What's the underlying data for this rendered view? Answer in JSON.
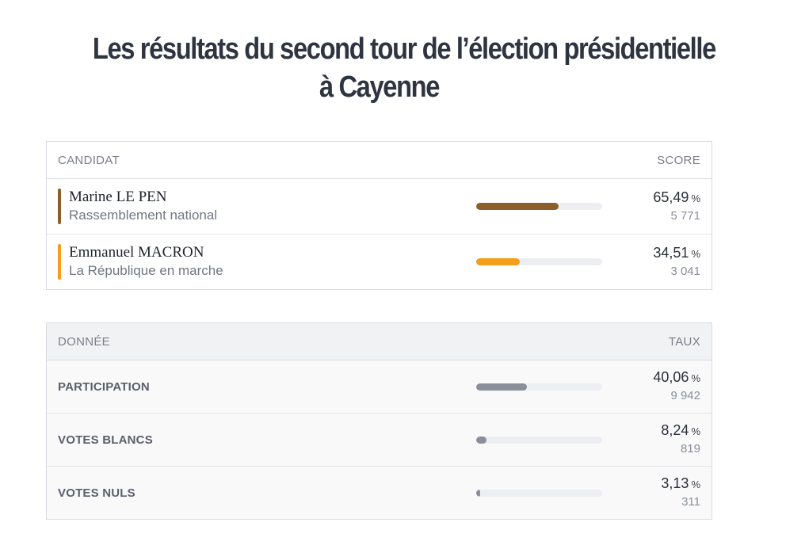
{
  "title": {
    "line1": "Les résultats du second tour de l’élection présidentielle",
    "line2": "à Cayenne"
  },
  "candidates_table": {
    "header_left": "CANDIDAT",
    "header_right": "SCORE",
    "rows": [
      {
        "name": "Marine LE PEN",
        "party": "Rassemblement national",
        "percent": "65,49",
        "unit": "%",
        "votes": "5 771",
        "share": 0.6549,
        "color": "#8b5e2b"
      },
      {
        "name": "Emmanuel MACRON",
        "party": "La République en marche",
        "percent": "34,51",
        "unit": "%",
        "votes": "3 041",
        "share": 0.3451,
        "color": "#f59e1b"
      }
    ]
  },
  "data_table": {
    "header_left": "DONNÉE",
    "header_right": "TAUX",
    "rows": [
      {
        "label": "PARTICIPATION",
        "percent": "40,06",
        "unit": "%",
        "count": "9 942",
        "share": 0.4006,
        "color": "#8a8f99"
      },
      {
        "label": "VOTES BLANCS",
        "percent": "8,24",
        "unit": "%",
        "count": "819",
        "share": 0.0824,
        "color": "#8a8f99"
      },
      {
        "label": "VOTES NULS",
        "percent": "3,13",
        "unit": "%",
        "count": "311",
        "share": 0.0313,
        "color": "#8a8f99"
      }
    ]
  }
}
